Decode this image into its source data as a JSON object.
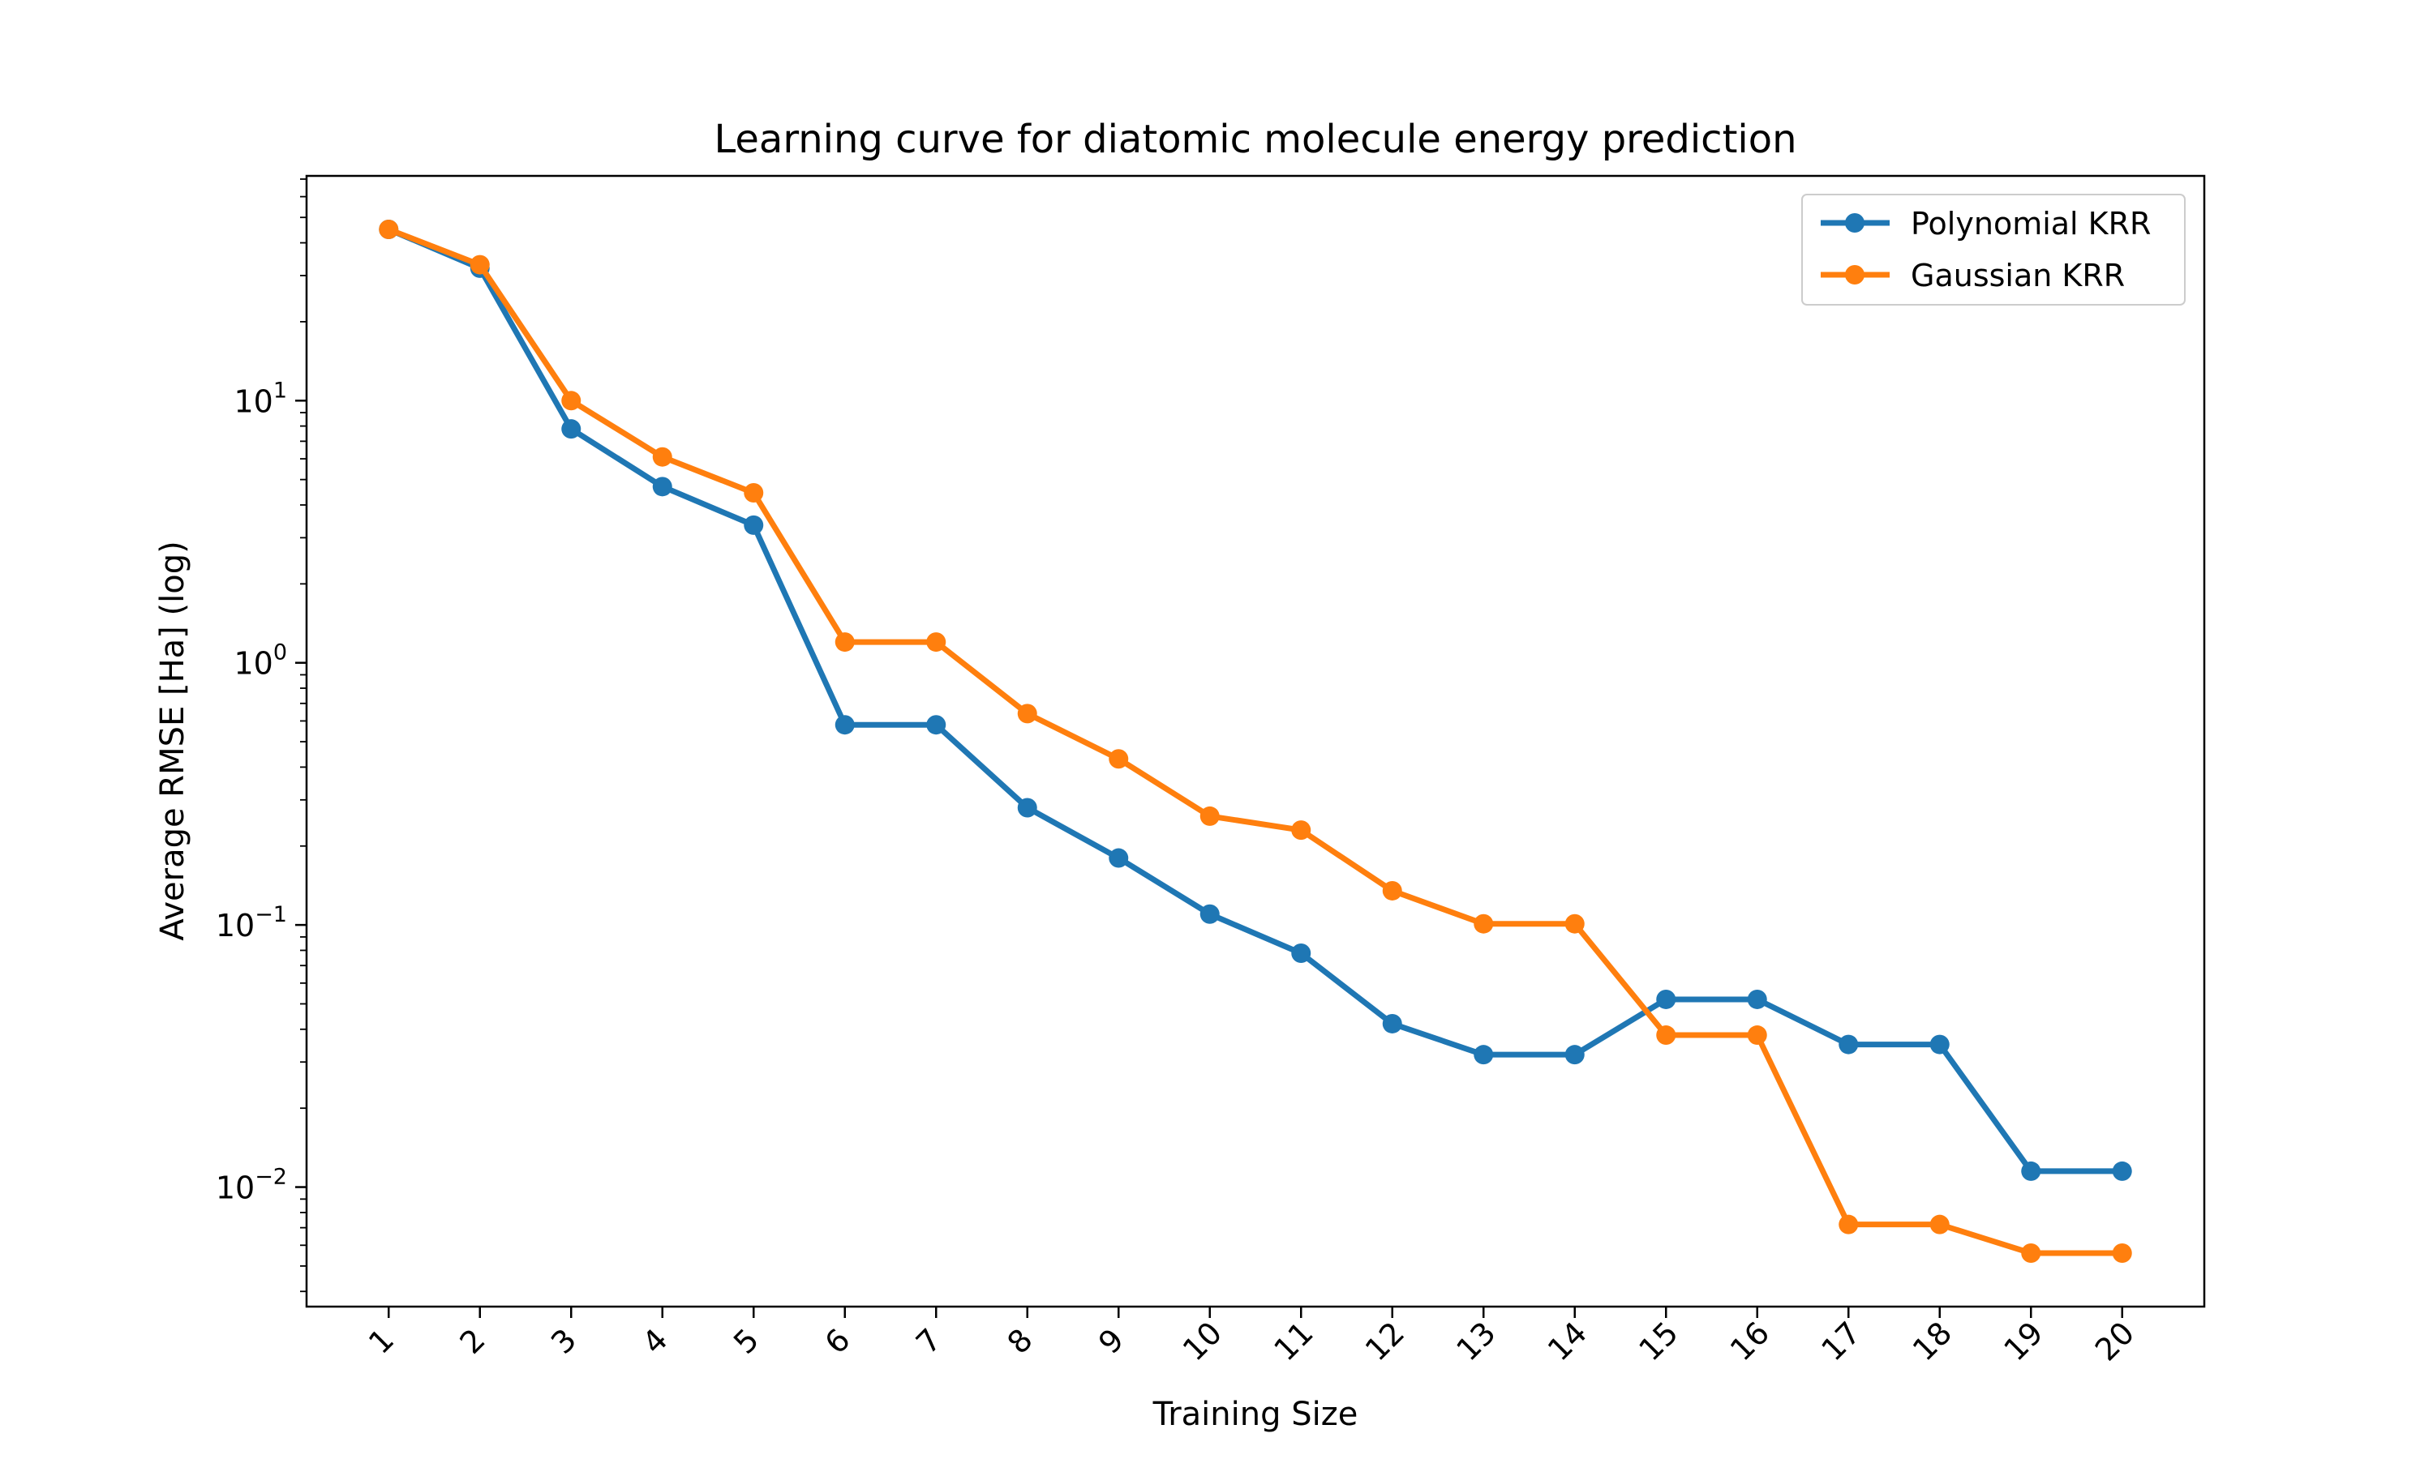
{
  "chart_data": {
    "type": "line",
    "title": "Learning curve for diatomic molecule energy prediction",
    "xlabel": "Training Size",
    "ylabel": "Average RMSE [Ha] (log)",
    "yscale": "log",
    "ylim": [
      0.0035,
      72
    ],
    "xlim": [
      0.1,
      20.9
    ],
    "x": [
      1,
      2,
      3,
      4,
      5,
      6,
      7,
      8,
      9,
      10,
      11,
      12,
      13,
      14,
      15,
      16,
      17,
      18,
      19,
      20
    ],
    "xtick_labels": [
      "1",
      "2",
      "3",
      "4",
      "5",
      "6",
      "7",
      "8",
      "9",
      "10",
      "11",
      "12",
      "13",
      "14",
      "15",
      "16",
      "17",
      "18",
      "19",
      "20"
    ],
    "ytick_labels": [
      {
        "value": 0.01,
        "base": "10",
        "exp": "−2"
      },
      {
        "value": 0.1,
        "base": "10",
        "exp": "−1"
      },
      {
        "value": 1,
        "base": "10",
        "exp": "0"
      },
      {
        "value": 10,
        "base": "10",
        "exp": "1"
      }
    ],
    "grid": false,
    "legend_position": "top-right",
    "series": [
      {
        "name": "Polynomial KRR",
        "color": "#1f77b4",
        "values": [
          45,
          32,
          7.8,
          4.7,
          3.35,
          0.58,
          0.58,
          0.28,
          0.18,
          0.11,
          0.078,
          0.042,
          0.032,
          0.032,
          0.052,
          0.052,
          0.035,
          0.035,
          0.0115,
          0.0115
        ]
      },
      {
        "name": "Gaussian KRR",
        "color": "#ff7f0e",
        "values": [
          45,
          33,
          10,
          6.1,
          4.45,
          1.2,
          1.2,
          0.64,
          0.43,
          0.26,
          0.23,
          0.135,
          0.101,
          0.101,
          0.038,
          0.038,
          0.0072,
          0.0072,
          0.0056,
          0.0056
        ]
      }
    ]
  }
}
